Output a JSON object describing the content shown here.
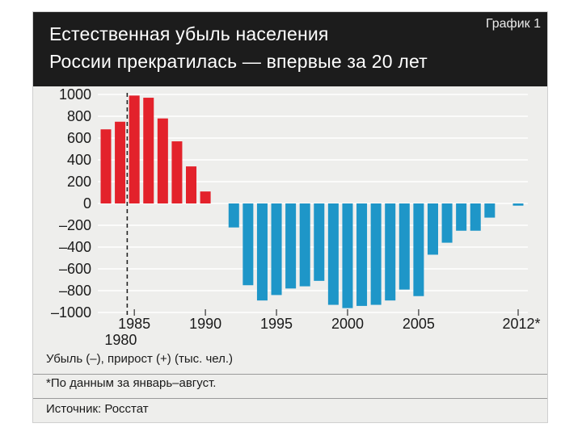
{
  "header": {
    "title_line1": "Естественная убыль населения",
    "title_line2": "России прекратилась — впервые за 20 лет",
    "tag": "График 1"
  },
  "footnote": "*По данным за январь–август.",
  "source": "Источник: Росстат",
  "colors": {
    "positive": "#e3222b",
    "negative": "#1e96c8",
    "grid": "#ffffff",
    "header_bg": "#1c1c1c",
    "panel_bg": "#eeeeec"
  },
  "chart_data": {
    "type": "bar",
    "title": "Естественная убыль населения России прекратилась — впервые за 20 лет",
    "xlabel": "Убыль (–), прирост (+) (тыс. чел.)",
    "ylabel": "",
    "ylim": [
      -1000,
      1000
    ],
    "yticks": [
      1000,
      800,
      600,
      400,
      200,
      0,
      -200,
      -400,
      -600,
      -800,
      -1000
    ],
    "ytick_labels": [
      "1000",
      "800",
      "600",
      "400",
      "200",
      "0",
      "–200",
      "–400",
      "–600",
      "–800",
      "–1000"
    ],
    "x_tick_labels": [
      {
        "year": 1985,
        "label": "1985"
      },
      {
        "year": 1990,
        "label": "1990"
      },
      {
        "year": 1995,
        "label": "1995"
      },
      {
        "year": 2000,
        "label": "2000"
      },
      {
        "year": 2005,
        "label": "2005"
      },
      {
        "year": 2012,
        "label": "2012*"
      }
    ],
    "reference_line": {
      "year": 1985,
      "style": "dashed"
    },
    "extra_x_label": "1980",
    "grid": true,
    "categories": [
      1983,
      1984,
      1985,
      1986,
      1987,
      1988,
      1989,
      1990,
      1991,
      1992,
      1993,
      1994,
      1995,
      1996,
      1997,
      1998,
      1999,
      2000,
      2001,
      2002,
      2003,
      2004,
      2005,
      2006,
      2007,
      2008,
      2009,
      2010,
      2011,
      2012
    ],
    "values": [
      680,
      750,
      990,
      970,
      780,
      570,
      340,
      110,
      0,
      -220,
      -750,
      -890,
      -840,
      -780,
      -760,
      -710,
      -930,
      -960,
      -940,
      -930,
      -890,
      -790,
      -850,
      -470,
      -360,
      -250,
      -250,
      -130,
      0,
      -20
    ]
  }
}
